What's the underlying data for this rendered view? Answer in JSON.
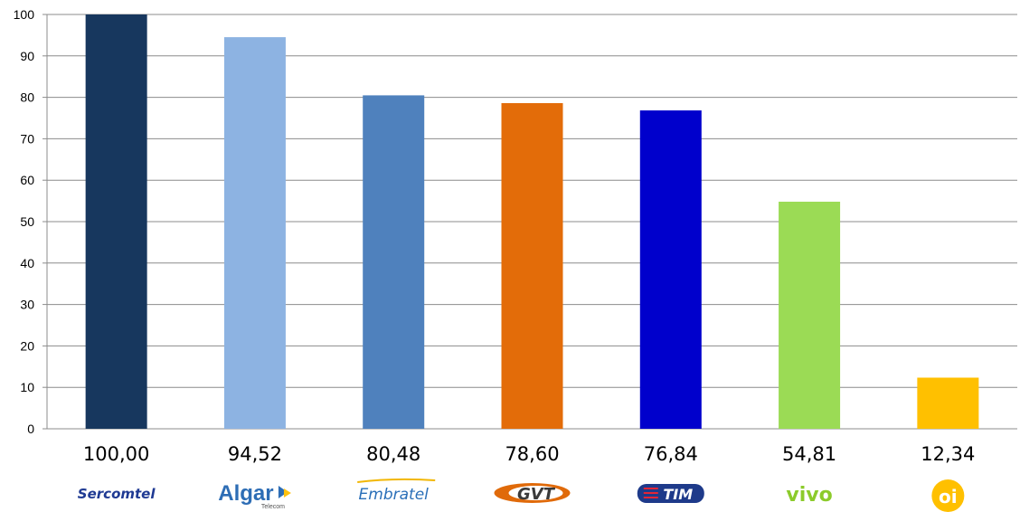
{
  "chart_data": {
    "type": "bar",
    "title": "",
    "xlabel": "",
    "ylabel": "",
    "ylim": [
      0,
      100
    ],
    "yticks": [
      0,
      10,
      20,
      30,
      40,
      50,
      60,
      70,
      80,
      90,
      100
    ],
    "grid": true,
    "legend": "none",
    "categories": [
      "Sercomtel",
      "Algar",
      "Embratel",
      "GVT",
      "TIM",
      "vivo",
      "oi"
    ],
    "logo_subtext": {
      "Algar": "Telecom"
    },
    "values": [
      100.0,
      94.52,
      80.48,
      78.6,
      76.84,
      54.81,
      12.34
    ],
    "data_labels": [
      "100,00",
      "94,52",
      "80,48",
      "78,60",
      "76,84",
      "54,81",
      "12,34"
    ],
    "colors": [
      "#17375E",
      "#8DB3E2",
      "#4F81BD",
      "#E36C09",
      "#0000CC",
      "#9BDB55",
      "#FFC000"
    ],
    "logo_colors": [
      "#1F3A93",
      "#2D6DB5",
      "#2A6FB8",
      "#E06A0A",
      "#1E3A8A",
      "#8CCB2B",
      "#FFC000"
    ]
  }
}
